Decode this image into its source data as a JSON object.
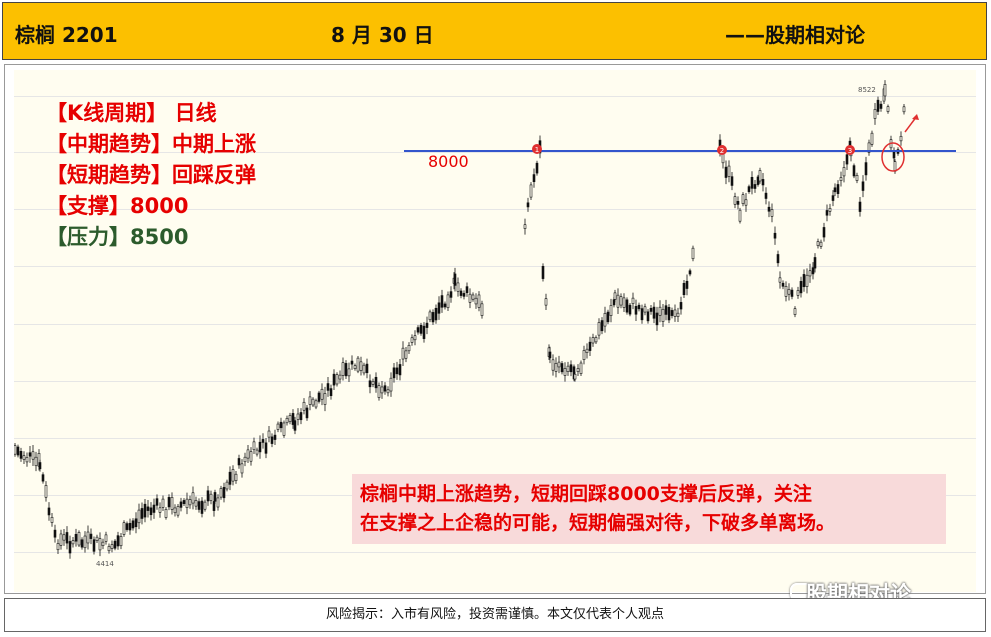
{
  "header": {
    "product": "棕榈 2201",
    "date": "8 月 30 日",
    "source": "——股期相对论"
  },
  "info": {
    "line1": "【K线周期】 日线",
    "line2": "【中期趋势】中期上涨",
    "line3": "【短期趋势】回踩反弹",
    "line4": "【支撑】8000",
    "line5": "【压力】8500"
  },
  "level": {
    "label": "8000"
  },
  "note": {
    "line1": "棕榈中期上涨趋势，短期回踩8000支撑后反弹，关注",
    "line2": "在支撑之上企稳的可能，短期偏强对待，下破多单离场。"
  },
  "footer": {
    "text": "风险揭示：入市有风险，投资需谨慎。本文仅代表个人观点"
  },
  "watermark": {
    "text": "股期相对论"
  },
  "chart_data": {
    "type": "candlestick",
    "high_label": "8522",
    "low_label": "4414",
    "support_level": 8000,
    "touch_markers": [
      "1",
      "2",
      "3"
    ],
    "colors": {
      "line": "#3355cc",
      "marker": "#e03030",
      "candle": "#111111"
    }
  }
}
